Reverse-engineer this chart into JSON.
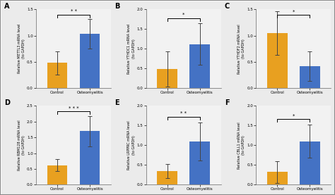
{
  "panels": [
    {
      "label": "A",
      "ylabel": "Relative METTL3 mRNA level\n(to GAPDH)",
      "ylim": [
        0.0,
        1.5
      ],
      "yticks": [
        0.0,
        0.5,
        1.0,
        1.5
      ],
      "control_val": 0.48,
      "osteo_val": 1.03,
      "control_err": 0.22,
      "osteo_err": 0.28,
      "sig": "* *"
    },
    {
      "label": "B",
      "ylabel": "Relative YTHDC1 mRNA level\n(to GAPDH)",
      "ylim": [
        0.0,
        2.0
      ],
      "yticks": [
        0.0,
        0.5,
        1.0,
        1.5,
        2.0
      ],
      "control_val": 0.48,
      "osteo_val": 1.12,
      "control_err": 0.45,
      "osteo_err": 0.52,
      "sig": "*"
    },
    {
      "label": "C",
      "ylabel": "Relative YTHDF2 mRNA level\n(to GAPDH)",
      "ylim": [
        0.0,
        1.5
      ],
      "yticks": [
        0.0,
        0.5,
        1.0,
        1.5
      ],
      "control_val": 1.05,
      "osteo_val": 0.42,
      "control_err": 0.42,
      "osteo_err": 0.28,
      "sig": "*"
    },
    {
      "label": "D",
      "ylabel": "Relative RBM128 mRNA level\n(to GAPDH)",
      "ylim": [
        0.0,
        2.5
      ],
      "yticks": [
        0.0,
        0.5,
        1.0,
        1.5,
        2.0,
        2.5
      ],
      "control_val": 0.62,
      "osteo_val": 1.7,
      "control_err": 0.18,
      "osteo_err": 0.48,
      "sig": "* * *"
    },
    {
      "label": "E",
      "ylabel": "Relative LRPPRC mRNA level\n(to GAPDH)",
      "ylim": [
        0.0,
        2.0
      ],
      "yticks": [
        0.0,
        0.5,
        1.0,
        1.5,
        2.0
      ],
      "control_val": 0.35,
      "osteo_val": 1.1,
      "control_err": 0.18,
      "osteo_err": 0.48,
      "sig": "* *"
    },
    {
      "label": "F",
      "ylabel": "Relative CBLL1 mRNA level\n(to GAPDH)",
      "ylim": [
        0.0,
        2.0
      ],
      "yticks": [
        0.0,
        0.5,
        1.0,
        1.5,
        2.0
      ],
      "control_val": 0.32,
      "osteo_val": 1.1,
      "control_err": 0.28,
      "osteo_err": 0.42,
      "sig": "*"
    }
  ],
  "color_control": "#E8A020",
  "color_osteo": "#4472C4",
  "xlabel_control": "Control",
  "xlabel_osteo": "Osteomyelitis",
  "fig_facecolor": "#EBEBEB",
  "ax_facecolor": "#F2F2F2",
  "bar_width": 0.62,
  "capsize": 2,
  "border_color": "#AAAAAA"
}
